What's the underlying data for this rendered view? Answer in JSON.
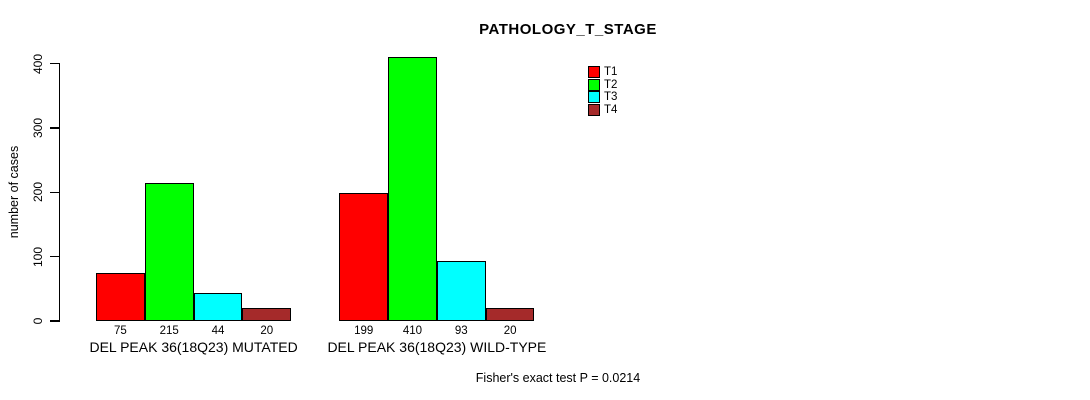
{
  "chart_data": {
    "type": "bar",
    "title": "PATHOLOGY_T_STAGE",
    "xlabel": "",
    "ylabel": "number of cases",
    "ylim": [
      0,
      400
    ],
    "yticks": [
      0,
      100,
      200,
      300,
      400
    ],
    "grid": false,
    "categories": [
      "DEL PEAK 36(18Q23) MUTATED",
      "DEL PEAK 36(18Q23) WILD-TYPE"
    ],
    "series": [
      {
        "name": "T1",
        "color": "#ff0000",
        "values": [
          75,
          199
        ]
      },
      {
        "name": "T2",
        "color": "#00ff00",
        "values": [
          215,
          410
        ]
      },
      {
        "name": "T3",
        "color": "#00ffff",
        "values": [
          44,
          93
        ]
      },
      {
        "name": "T4",
        "color": "#a52a2a",
        "values": [
          20,
          20
        ]
      }
    ],
    "show_value_labels": true,
    "legend": {
      "position": "top-right-inside",
      "entries": [
        "T1",
        "T2",
        "T3",
        "T4"
      ]
    },
    "annotation": "Fisher's exact test P = 0.0214"
  },
  "colors": {
    "background": "#ffffff",
    "axis": "#000000",
    "text": "#000000"
  }
}
